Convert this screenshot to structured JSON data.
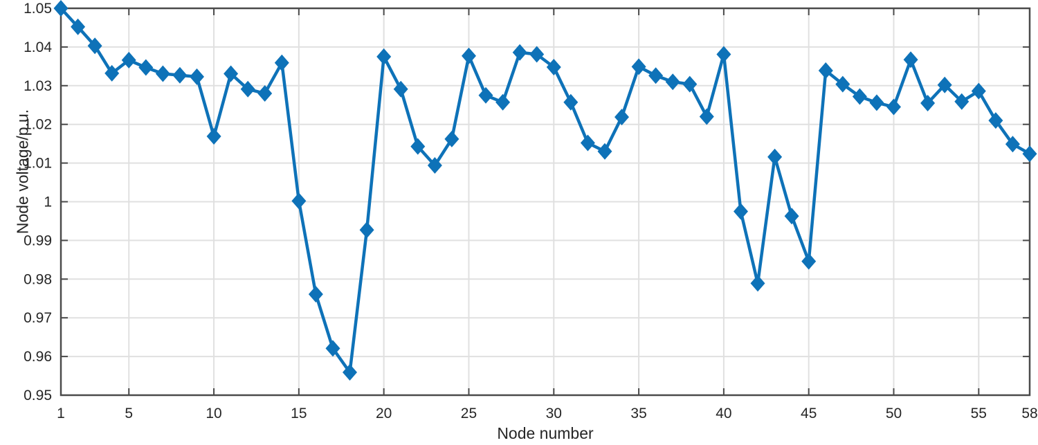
{
  "figure": {
    "title": "",
    "background": "#ffffff"
  },
  "chart_data": {
    "type": "line",
    "title": "",
    "xlabel": "Node number",
    "ylabel": "Node voltage/p.u.",
    "xlim": [
      1,
      58
    ],
    "ylim": [
      0.95,
      1.05
    ],
    "grid": true,
    "legend": "none",
    "marker": "diamond",
    "x": [
      1,
      2,
      3,
      4,
      5,
      6,
      7,
      8,
      9,
      10,
      11,
      12,
      13,
      14,
      15,
      16,
      17,
      18,
      19,
      20,
      21,
      22,
      23,
      24,
      25,
      26,
      27,
      28,
      29,
      30,
      31,
      32,
      33,
      34,
      35,
      36,
      37,
      38,
      39,
      40,
      41,
      42,
      43,
      44,
      45,
      46,
      47,
      48,
      49,
      50,
      51,
      52,
      53,
      54,
      55,
      56,
      57,
      58
    ],
    "series": [
      {
        "name": "Node voltage",
        "values": [
          1.05,
          1.0452,
          1.0403,
          1.0332,
          1.0366,
          1.0347,
          1.0331,
          1.0327,
          1.0323,
          1.0169,
          1.0331,
          1.0291,
          1.028,
          1.0359,
          1.0002,
          0.9761,
          0.9621,
          0.9559,
          0.9927,
          1.0375,
          1.0291,
          1.0143,
          1.0094,
          1.0162,
          1.0377,
          1.0275,
          1.0257,
          1.0386,
          1.0381,
          1.0348,
          1.0257,
          1.0152,
          1.013,
          1.0219,
          1.0349,
          1.0326,
          1.031,
          1.0304,
          1.022,
          1.0381,
          0.9975,
          0.9789,
          1.0116,
          0.9963,
          0.9846,
          1.0339,
          1.0304,
          1.0272,
          1.0256,
          1.0245,
          1.0367,
          1.0255,
          1.0302,
          1.0259,
          1.0286,
          1.021,
          1.0149,
          1.0124
        ]
      }
    ],
    "xticks": {
      "values": [
        1,
        5,
        10,
        15,
        20,
        25,
        30,
        35,
        40,
        45,
        50,
        55,
        58
      ],
      "labels": [
        "1",
        "5",
        "10",
        "15",
        "20",
        "25",
        "30",
        "35",
        "40",
        "45",
        "50",
        "55",
        "58"
      ]
    },
    "yticks": {
      "values": [
        1.05,
        1.04,
        1.03,
        1.02,
        1.01,
        1.0,
        0.99,
        0.98,
        0.97,
        0.96,
        0.95
      ],
      "labels": [
        "1.05",
        "1.04",
        "1.03",
        "1.02",
        "1.01",
        "1",
        "0.99",
        "0.98",
        "0.97",
        "0.96",
        "0.95"
      ]
    }
  },
  "style": {
    "line_color": "#0e72b8",
    "axis_color": "#4a4a4a",
    "grid_color": "#e0e0e0",
    "text_color": "#262626"
  }
}
